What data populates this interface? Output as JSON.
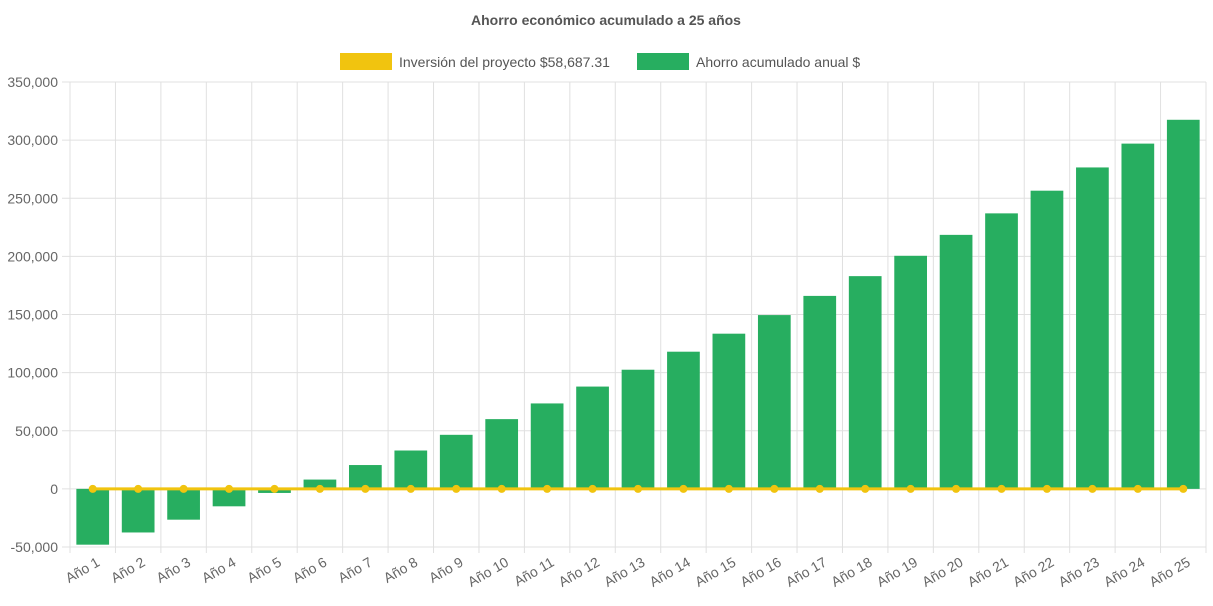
{
  "chart_data": {
    "type": "bar",
    "title": "Ahorro económico acumulado a 25 años",
    "categories": [
      "Año 1",
      "Año 2",
      "Año 3",
      "Año 4",
      "Año 5",
      "Año 6",
      "Año 7",
      "Año 8",
      "Año 9",
      "Año 10",
      "Año 11",
      "Año 12",
      "Año 13",
      "Año 14",
      "Año 15",
      "Año 16",
      "Año 17",
      "Año 18",
      "Año 19",
      "Año 20",
      "Año 21",
      "Año 22",
      "Año 23",
      "Año 24",
      "Año 25"
    ],
    "series": [
      {
        "name": "Inversión del proyecto $58,687.31",
        "type": "line",
        "color": "#f1c40f",
        "values": [
          0,
          0,
          0,
          0,
          0,
          0,
          0,
          0,
          0,
          0,
          0,
          0,
          0,
          0,
          0,
          0,
          0,
          0,
          0,
          0,
          0,
          0,
          0,
          0,
          0
        ]
      },
      {
        "name": "Ahorro acumulado anual $",
        "type": "bar",
        "color": "#27ae60",
        "values": [
          -48000,
          -37500,
          -26500,
          -15000,
          -3500,
          8000,
          20500,
          33000,
          46500,
          60000,
          73500,
          88000,
          102500,
          118000,
          133500,
          149500,
          166000,
          183000,
          200500,
          218500,
          237000,
          256500,
          276500,
          297000,
          317500
        ]
      }
    ],
    "yticks": [
      "350,000",
      "300,000",
      "250,000",
      "200,000",
      "150,000",
      "100,000",
      "50,000",
      "0",
      "-50,000"
    ],
    "ylim": [
      -50000,
      350000
    ],
    "grid": true,
    "legend_position": "top"
  }
}
